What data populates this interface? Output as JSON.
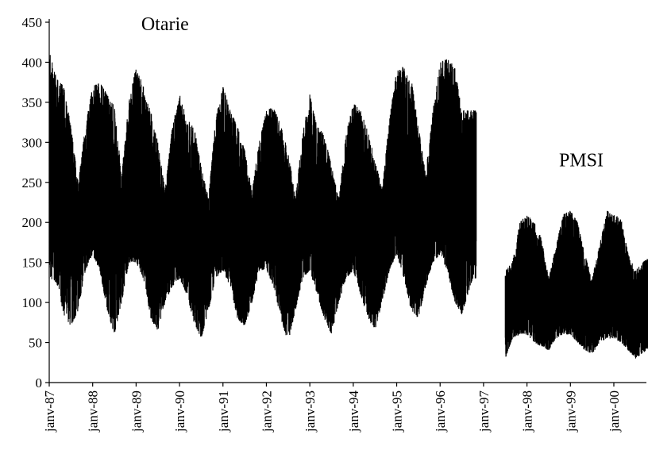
{
  "chart_data": {
    "type": "line",
    "title": "",
    "xlabel": "",
    "ylabel": "",
    "ylim": [
      0,
      450
    ],
    "yticks": [
      0,
      50,
      100,
      150,
      200,
      250,
      300,
      350,
      400,
      450
    ],
    "xlim": [
      "1987-01",
      "2000-10"
    ],
    "xtick_labels": [
      "janv-87",
      "janv-88",
      "janv-89",
      "janv-90",
      "janv-91",
      "janv-92",
      "janv-93",
      "janv-94",
      "janv-95",
      "janv-96",
      "janv-97",
      "janv-98",
      "janv-99",
      "janv-00"
    ],
    "grid": false,
    "legend": "none",
    "color": "#000000",
    "annotations": [
      {
        "text": "Otarie",
        "x": "1989-09",
        "y": 440
      },
      {
        "text": "PMSI",
        "x": "1999-04",
        "y": 270
      }
    ],
    "series": [
      {
        "period": [
          "1987-01",
          "1996-10"
        ],
        "envelope_max": [
          [
            "1987-01",
            415
          ],
          [
            "1987-03",
            380
          ],
          [
            "1987-05",
            370
          ],
          [
            "1987-07",
            320
          ],
          [
            "1987-09",
            250
          ],
          [
            "1987-11",
            320
          ],
          [
            "1988-01",
            370
          ],
          [
            "1988-03",
            375
          ],
          [
            "1988-05",
            360
          ],
          [
            "1988-07",
            345
          ],
          [
            "1988-09",
            260
          ],
          [
            "1988-11",
            350
          ],
          [
            "1989-01",
            395
          ],
          [
            "1989-03",
            370
          ],
          [
            "1989-05",
            340
          ],
          [
            "1989-07",
            300
          ],
          [
            "1989-09",
            240
          ],
          [
            "1989-11",
            320
          ],
          [
            "1990-01",
            360
          ],
          [
            "1990-03",
            330
          ],
          [
            "1990-05",
            320
          ],
          [
            "1990-07",
            270
          ],
          [
            "1990-09",
            230
          ],
          [
            "1990-11",
            330
          ],
          [
            "1991-01",
            370
          ],
          [
            "1991-03",
            340
          ],
          [
            "1991-05",
            320
          ],
          [
            "1991-07",
            290
          ],
          [
            "1991-09",
            240
          ],
          [
            "1991-11",
            300
          ],
          [
            "1992-01",
            340
          ],
          [
            "1992-03",
            345
          ],
          [
            "1992-05",
            320
          ],
          [
            "1992-07",
            290
          ],
          [
            "1992-09",
            230
          ],
          [
            "1992-11",
            310
          ],
          [
            "1993-01",
            360
          ],
          [
            "1993-03",
            320
          ],
          [
            "1993-05",
            310
          ],
          [
            "1993-07",
            270
          ],
          [
            "1993-09",
            230
          ],
          [
            "1993-11",
            310
          ],
          [
            "1994-01",
            350
          ],
          [
            "1994-03",
            340
          ],
          [
            "1994-05",
            315
          ],
          [
            "1994-07",
            280
          ],
          [
            "1994-09",
            240
          ],
          [
            "1994-11",
            330
          ],
          [
            "1995-01",
            390
          ],
          [
            "1995-03",
            395
          ],
          [
            "1995-05",
            380
          ],
          [
            "1995-07",
            320
          ],
          [
            "1995-09",
            260
          ],
          [
            "1995-11",
            340
          ],
          [
            "1996-01",
            400
          ],
          [
            "1996-03",
            405
          ],
          [
            "1996-05",
            395
          ],
          [
            "1996-07",
            340
          ],
          [
            "1996-10",
            340
          ]
        ],
        "envelope_min": [
          [
            "1987-01",
            130
          ],
          [
            "1987-03",
            125
          ],
          [
            "1987-05",
            85
          ],
          [
            "1987-07",
            70
          ],
          [
            "1987-09",
            90
          ],
          [
            "1987-11",
            140
          ],
          [
            "1988-01",
            160
          ],
          [
            "1988-03",
            140
          ],
          [
            "1988-05",
            90
          ],
          [
            "1988-07",
            60
          ],
          [
            "1988-09",
            100
          ],
          [
            "1988-11",
            150
          ],
          [
            "1989-01",
            150
          ],
          [
            "1989-03",
            130
          ],
          [
            "1989-05",
            80
          ],
          [
            "1989-07",
            65
          ],
          [
            "1989-09",
            100
          ],
          [
            "1989-11",
            120
          ],
          [
            "1990-01",
            130
          ],
          [
            "1990-03",
            110
          ],
          [
            "1990-05",
            75
          ],
          [
            "1990-07",
            55
          ],
          [
            "1990-09",
            90
          ],
          [
            "1990-11",
            130
          ],
          [
            "1991-01",
            140
          ],
          [
            "1991-03",
            120
          ],
          [
            "1991-05",
            80
          ],
          [
            "1991-07",
            70
          ],
          [
            "1991-09",
            100
          ],
          [
            "1991-11",
            140
          ],
          [
            "1992-01",
            140
          ],
          [
            "1992-03",
            120
          ],
          [
            "1992-05",
            80
          ],
          [
            "1992-07",
            50
          ],
          [
            "1992-09",
            90
          ],
          [
            "1992-11",
            130
          ],
          [
            "1993-01",
            140
          ],
          [
            "1993-03",
            110
          ],
          [
            "1993-05",
            80
          ],
          [
            "1993-07",
            60
          ],
          [
            "1993-09",
            100
          ],
          [
            "1993-11",
            130
          ],
          [
            "1994-01",
            140
          ],
          [
            "1994-03",
            110
          ],
          [
            "1994-05",
            80
          ],
          [
            "1994-07",
            65
          ],
          [
            "1994-09",
            100
          ],
          [
            "1994-11",
            140
          ],
          [
            "1995-01",
            160
          ],
          [
            "1995-03",
            130
          ],
          [
            "1995-05",
            90
          ],
          [
            "1995-07",
            80
          ],
          [
            "1995-09",
            120
          ],
          [
            "1995-11",
            150
          ],
          [
            "1996-01",
            160
          ],
          [
            "1996-03",
            140
          ],
          [
            "1996-05",
            100
          ],
          [
            "1996-07",
            85
          ],
          [
            "1996-10",
            130
          ]
        ]
      },
      {
        "period": [
          "1997-07",
          "2000-10"
        ],
        "envelope_max": [
          [
            "1997-07",
            140
          ],
          [
            "1997-09",
            150
          ],
          [
            "1997-11",
            200
          ],
          [
            "1998-01",
            210
          ],
          [
            "1998-03",
            200
          ],
          [
            "1998-05",
            180
          ],
          [
            "1998-07",
            130
          ],
          [
            "1998-09",
            170
          ],
          [
            "1998-11",
            210
          ],
          [
            "1999-01",
            215
          ],
          [
            "1999-03",
            200
          ],
          [
            "1999-05",
            160
          ],
          [
            "1999-07",
            130
          ],
          [
            "1999-09",
            170
          ],
          [
            "1999-11",
            215
          ],
          [
            "2000-01",
            210
          ],
          [
            "2000-03",
            205
          ],
          [
            "2000-05",
            160
          ],
          [
            "2000-07",
            140
          ],
          [
            "2000-10",
            155
          ]
        ],
        "envelope_min": [
          [
            "1997-07",
            30
          ],
          [
            "1997-09",
            55
          ],
          [
            "1997-11",
            60
          ],
          [
            "1998-01",
            60
          ],
          [
            "1998-03",
            50
          ],
          [
            "1998-05",
            45
          ],
          [
            "1998-07",
            40
          ],
          [
            "1998-09",
            55
          ],
          [
            "1998-11",
            60
          ],
          [
            "1999-01",
            60
          ],
          [
            "1999-03",
            50
          ],
          [
            "1999-05",
            40
          ],
          [
            "1999-07",
            35
          ],
          [
            "1999-09",
            50
          ],
          [
            "1999-11",
            55
          ],
          [
            "2000-01",
            55
          ],
          [
            "2000-03",
            50
          ],
          [
            "2000-05",
            40
          ],
          [
            "2000-07",
            30
          ],
          [
            "2000-10",
            40
          ]
        ]
      }
    ]
  }
}
